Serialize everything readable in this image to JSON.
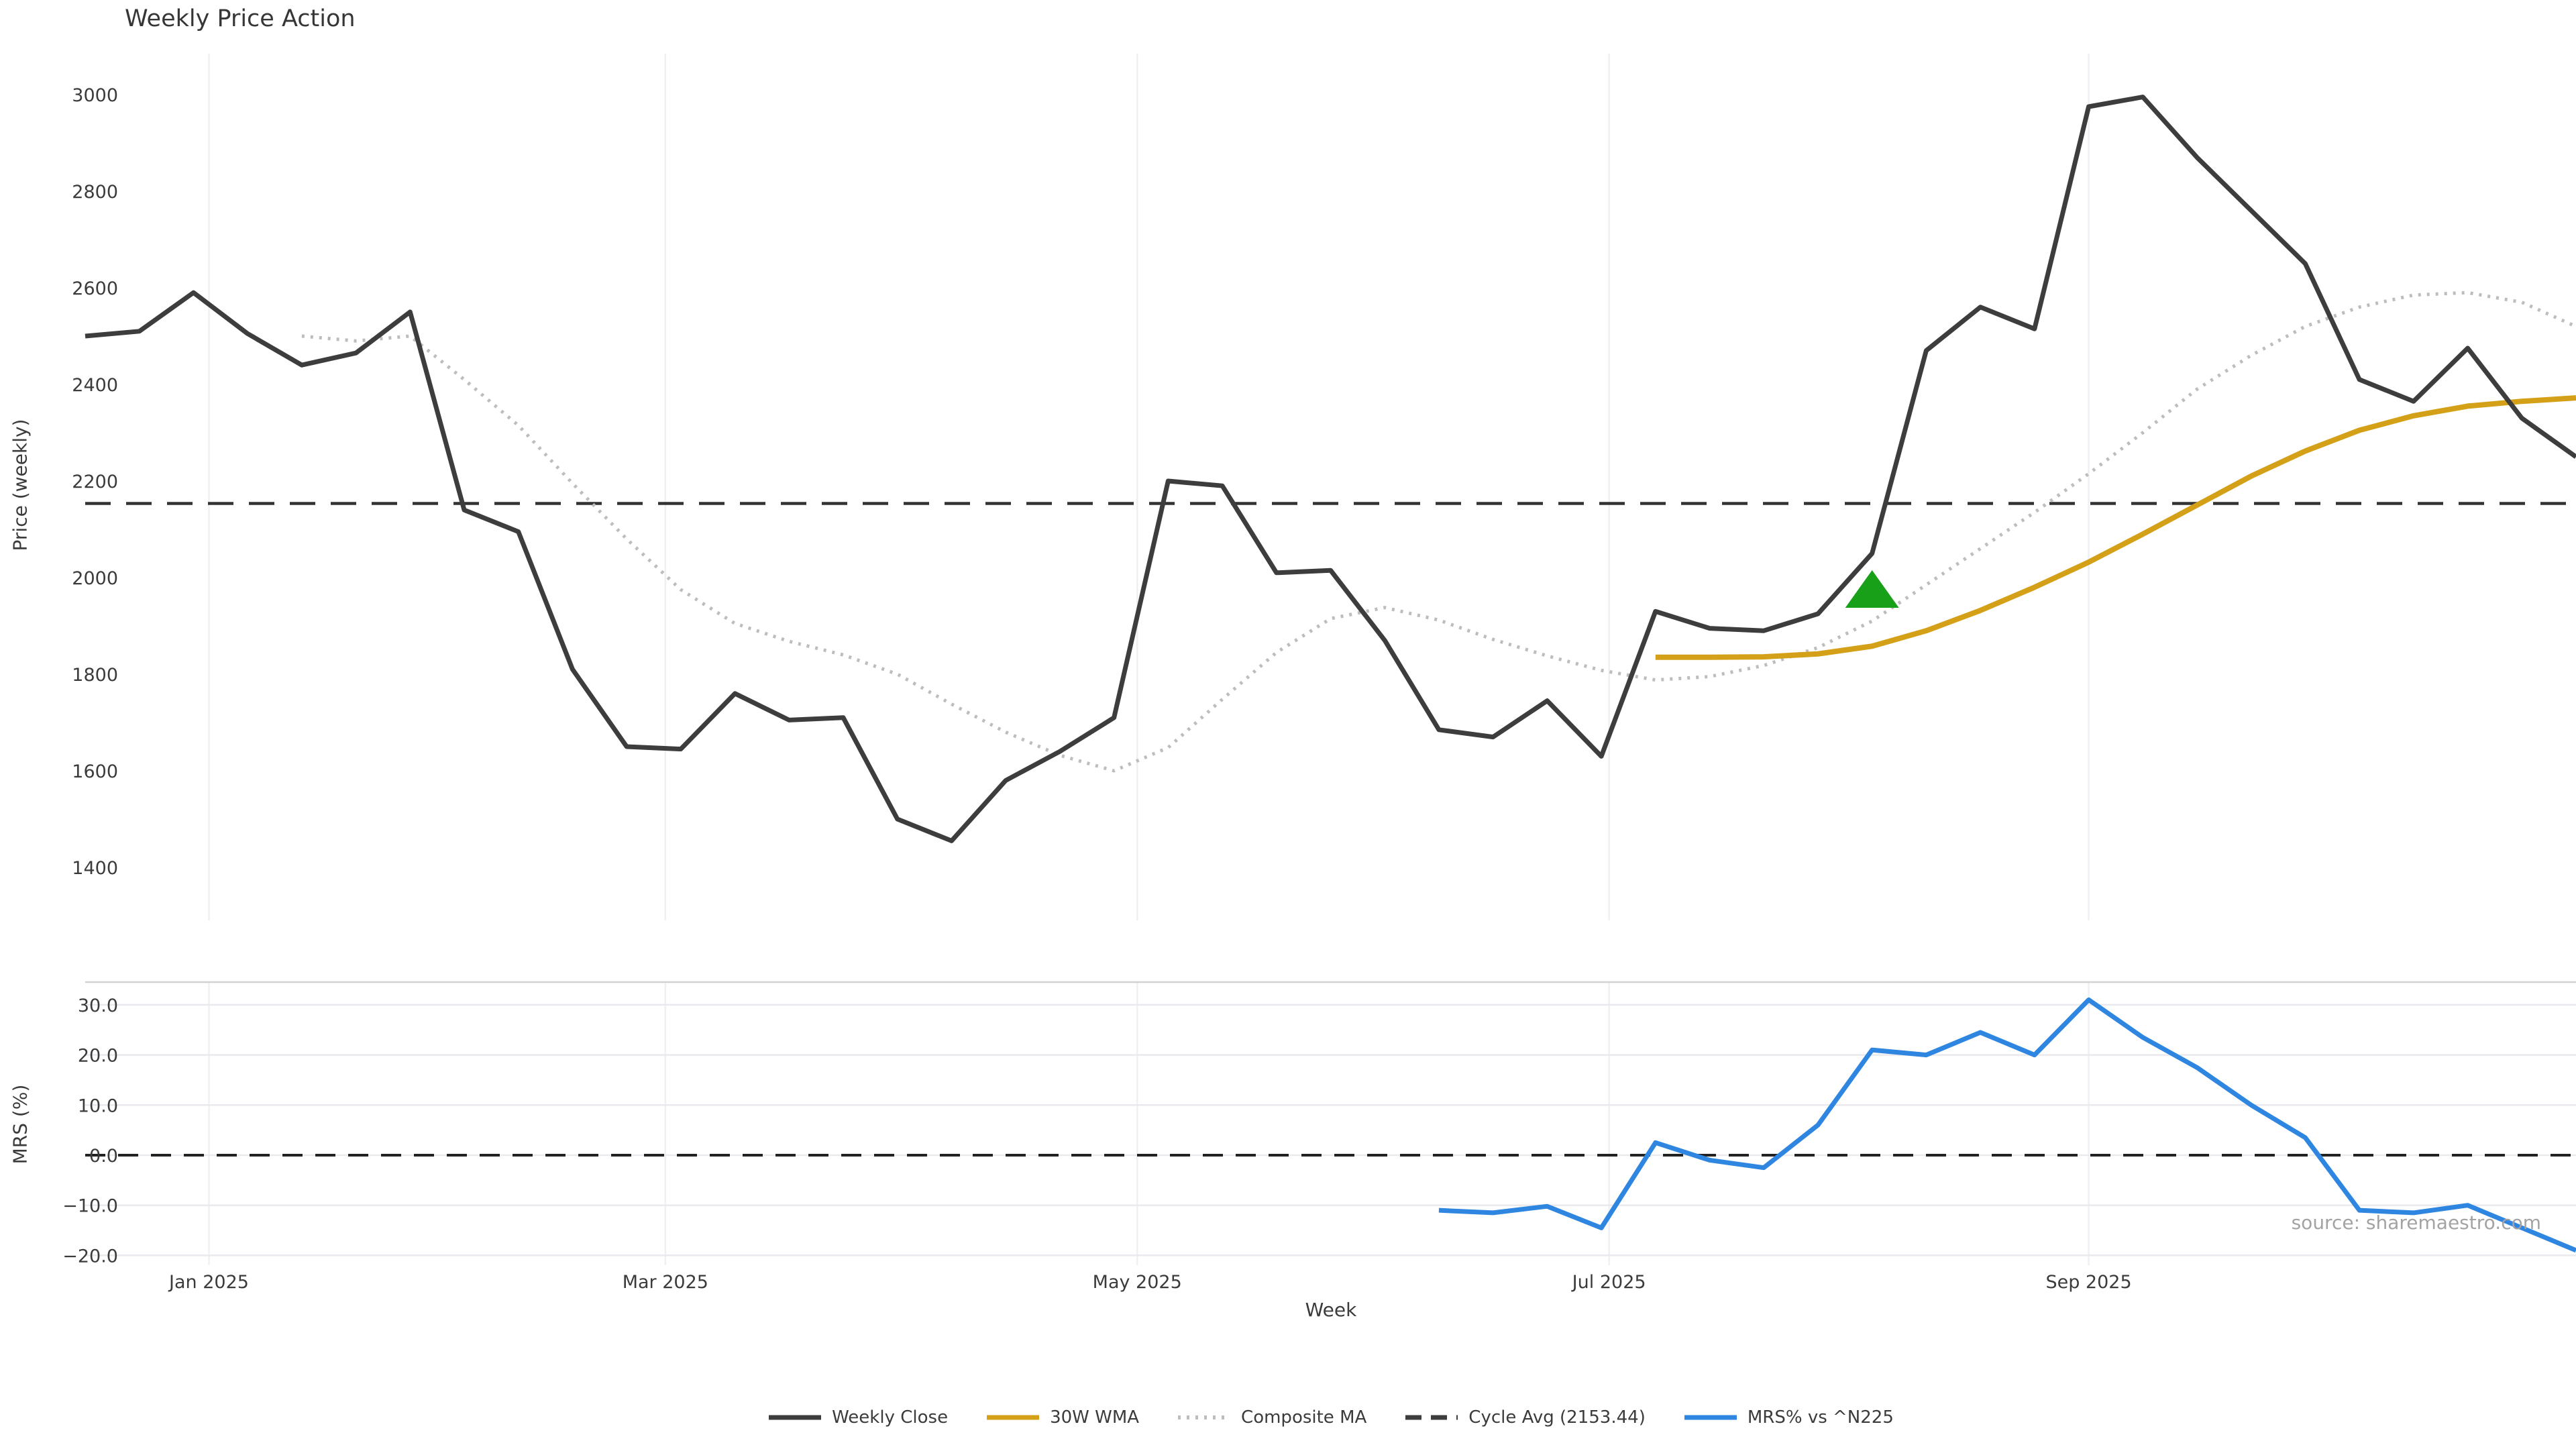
{
  "title": "Weekly Price Action",
  "xlabel": "Week",
  "source_note": "source: sharemaestro.com",
  "colors": {
    "weekly_close": "#3d3d3d",
    "wma_30w": "#d4a017",
    "composite_ma": "#bdbdbd",
    "cycle_avg": "#333333",
    "mrs_line": "#2f86e0",
    "signal_marker": "#18a118",
    "grid_vertical": "#eef0f4",
    "grid_horizontal": "#e9e9ee",
    "panel_spine": "#d2d2d2",
    "tick_text": "#3b3b3b",
    "source_text": "#a3a3a3"
  },
  "legend": {
    "items": [
      {
        "label": "Weekly Close",
        "style": "solid",
        "color": "#3d3d3d"
      },
      {
        "label": "30W WMA",
        "style": "solid",
        "color": "#d4a017"
      },
      {
        "label": "Composite MA",
        "style": "dotted",
        "color": "#bdbdbd"
      },
      {
        "label": "Cycle Avg (2153.44)",
        "style": "dashed",
        "color": "#3d3d3d"
      },
      {
        "label": "MRS% vs ^N225",
        "style": "solid",
        "color": "#2f86e0"
      }
    ]
  },
  "chart_data": {
    "type": "line",
    "title": "Weekly Price Action",
    "xlabel": "Week",
    "weeks": [
      "2024-12-16",
      "2024-12-23",
      "2024-12-30",
      "2025-01-06",
      "2025-01-13",
      "2025-01-20",
      "2025-01-27",
      "2025-02-03",
      "2025-02-10",
      "2025-02-17",
      "2025-02-24",
      "2025-03-03",
      "2025-03-10",
      "2025-03-17",
      "2025-03-24",
      "2025-03-31",
      "2025-04-07",
      "2025-04-14",
      "2025-04-21",
      "2025-04-28",
      "2025-05-05",
      "2025-05-12",
      "2025-05-19",
      "2025-05-26",
      "2025-06-02",
      "2025-06-09",
      "2025-06-16",
      "2025-06-23",
      "2025-06-30",
      "2025-07-07",
      "2025-07-14",
      "2025-07-21",
      "2025-07-28",
      "2025-08-04",
      "2025-08-11",
      "2025-08-18",
      "2025-08-25",
      "2025-09-01",
      "2025-09-08",
      "2025-09-15",
      "2025-09-22",
      "2025-09-29",
      "2025-10-06",
      "2025-10-13",
      "2025-10-20",
      "2025-10-27",
      "2025-11-03"
    ],
    "xticks": [
      {
        "label": "Jan 2025",
        "week_pos": 2.2857
      },
      {
        "label": "Mar 2025",
        "week_pos": 10.7143
      },
      {
        "label": "May 2025",
        "week_pos": 19.4286
      },
      {
        "label": "Jul 2025",
        "week_pos": 28.1429
      },
      {
        "label": "Sep 2025",
        "week_pos": 37.0
      }
    ],
    "panels": [
      {
        "name": "price",
        "ylabel": "Price (weekly)",
        "ylim": [
          1300,
          3085
        ],
        "yticks": [
          {
            "value": 3000,
            "label": "3000"
          },
          {
            "value": 2800,
            "label": "2800"
          },
          {
            "value": 2600,
            "label": "2600"
          },
          {
            "value": 2400,
            "label": "2400"
          },
          {
            "value": 2200,
            "label": "2200"
          },
          {
            "value": 2000,
            "label": "2000"
          },
          {
            "value": 1800,
            "label": "1800"
          },
          {
            "value": 1600,
            "label": "1600"
          },
          {
            "value": 1400,
            "label": "1400"
          }
        ],
        "grid": "vertical",
        "hline": {
          "name": "Cycle Avg",
          "value": 2153.44,
          "style": "dashed",
          "color": "#333333"
        },
        "marker": {
          "shape": "triangle-up",
          "color": "#18a118",
          "week_index": 33,
          "week": "2025-08-04",
          "value": 1975
        },
        "series": [
          {
            "name": "Weekly Close",
            "color": "#3d3d3d",
            "style": "solid",
            "start_week_index": 0,
            "values": [
              2500,
              2510,
              2590,
              2505,
              2440,
              2465,
              2550,
              2140,
              2095,
              1810,
              1650,
              1645,
              1760,
              1705,
              1710,
              1500,
              1455,
              1580,
              1640,
              1710,
              2200,
              2190,
              2010,
              2015,
              1870,
              1685,
              1670,
              1745,
              1630,
              1930,
              1895,
              1890,
              1925,
              2050,
              2470,
              2560,
              2515,
              2975,
              2995,
              2870,
              2760,
              2650,
              2410,
              2365,
              2475,
              2330,
              2250
            ]
          },
          {
            "name": "30W WMA",
            "color": "#d4a017",
            "style": "solid",
            "start_week_index": 29,
            "values": [
              1835,
              1835,
              1836,
              1842,
              1858,
              1890,
              1932,
              1980,
              2032,
              2090,
              2150,
              2210,
              2262,
              2305,
              2335,
              2355,
              2365,
              2372
            ]
          },
          {
            "name": "Composite MA",
            "color": "#bdbdbd",
            "style": "dotted",
            "start_week_index": 4,
            "values": [
              2500,
              2490,
              2500,
              2410,
              2315,
              2195,
              2080,
              1975,
              1905,
              1868,
              1840,
              1800,
              1738,
              1680,
              1632,
              1600,
              1648,
              1748,
              1845,
              1915,
              1938,
              1912,
              1872,
              1838,
              1808,
              1788,
              1795,
              1818,
              1855,
              1910,
              1985,
              2060,
              2135,
              2215,
              2300,
              2390,
              2460,
              2520,
              2560,
              2585,
              2590,
              2570,
              2520
            ]
          }
        ]
      },
      {
        "name": "mrs",
        "ylabel": "MRS (%)",
        "ylim": [
          -22,
          34.5
        ],
        "yticks": [
          {
            "value": 30,
            "label": "30.0"
          },
          {
            "value": 20,
            "label": "20.0"
          },
          {
            "value": 10,
            "label": "10.0"
          },
          {
            "value": 0,
            "label": "0.0"
          },
          {
            "value": -10,
            "label": "−10.0"
          },
          {
            "value": -20,
            "label": "−20.0"
          }
        ],
        "grid": "both",
        "hline": {
          "name": "Zero line",
          "value": 0,
          "style": "dashed",
          "color": "#222222"
        },
        "series": [
          {
            "name": "MRS% vs ^N225",
            "color": "#2f86e0",
            "style": "solid",
            "start_week_index": 25,
            "values": [
              -11.0,
              -11.5,
              -10.2,
              -14.5,
              2.5,
              -1.0,
              -2.5,
              6.0,
              21.0,
              20.0,
              24.5,
              20.0,
              31.0,
              23.5,
              17.5,
              10.0,
              3.5,
              -11.0,
              -11.5,
              -10.0,
              -14.5,
              -19.0
            ]
          }
        ]
      }
    ]
  }
}
